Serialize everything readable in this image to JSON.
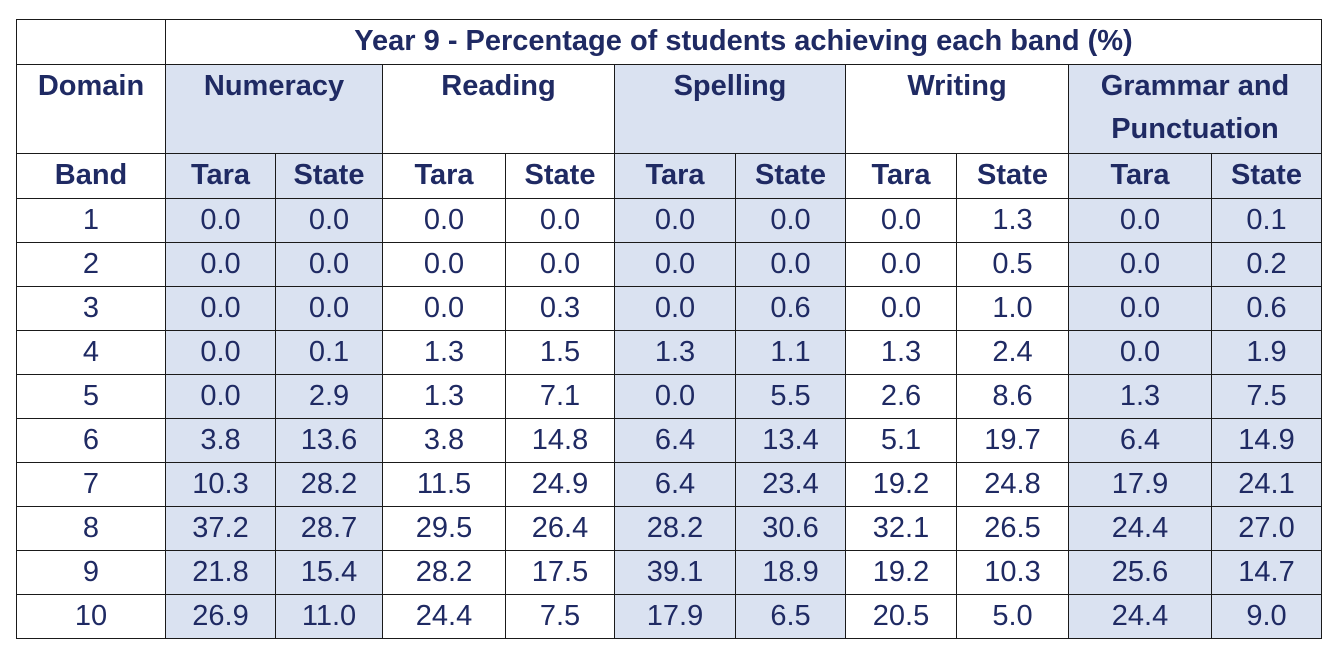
{
  "title": "Year 9 - Percentage of students achieving each band (%)",
  "domain_label": "Domain",
  "band_label": "Band",
  "domains": [
    "Numeracy",
    "Reading",
    "Spelling",
    "Writing",
    "Grammar and Punctuation"
  ],
  "subheaders": [
    "Tara",
    "State"
  ],
  "rows": [
    {
      "band": "1",
      "values": [
        "0.0",
        "0.0",
        "0.0",
        "0.0",
        "0.0",
        "0.0",
        "0.0",
        "1.3",
        "0.0",
        "0.1"
      ]
    },
    {
      "band": "2",
      "values": [
        "0.0",
        "0.0",
        "0.0",
        "0.0",
        "0.0",
        "0.0",
        "0.0",
        "0.5",
        "0.0",
        "0.2"
      ]
    },
    {
      "band": "3",
      "values": [
        "0.0",
        "0.0",
        "0.0",
        "0.3",
        "0.0",
        "0.6",
        "0.0",
        "1.0",
        "0.0",
        "0.6"
      ]
    },
    {
      "band": "4",
      "values": [
        "0.0",
        "0.1",
        "1.3",
        "1.5",
        "1.3",
        "1.1",
        "1.3",
        "2.4",
        "0.0",
        "1.9"
      ]
    },
    {
      "band": "5",
      "values": [
        "0.0",
        "2.9",
        "1.3",
        "7.1",
        "0.0",
        "5.5",
        "2.6",
        "8.6",
        "1.3",
        "7.5"
      ]
    },
    {
      "band": "6",
      "values": [
        "3.8",
        "13.6",
        "3.8",
        "14.8",
        "6.4",
        "13.4",
        "5.1",
        "19.7",
        "6.4",
        "14.9"
      ]
    },
    {
      "band": "7",
      "values": [
        "10.3",
        "28.2",
        "11.5",
        "24.9",
        "6.4",
        "23.4",
        "19.2",
        "24.8",
        "17.9",
        "24.1"
      ]
    },
    {
      "band": "8",
      "values": [
        "37.2",
        "28.7",
        "29.5",
        "26.4",
        "28.2",
        "30.6",
        "32.1",
        "26.5",
        "24.4",
        "27.0"
      ]
    },
    {
      "band": "9",
      "values": [
        "21.8",
        "15.4",
        "28.2",
        "17.5",
        "39.1",
        "18.9",
        "19.2",
        "10.3",
        "25.6",
        "14.7"
      ]
    },
    {
      "band": "10",
      "values": [
        "26.9",
        "11.0",
        "24.4",
        "7.5",
        "17.9",
        "6.5",
        "20.5",
        "5.0",
        "24.4",
        "9.0"
      ]
    }
  ],
  "colors": {
    "text": "#1f2a63",
    "shade": "#dae2f1",
    "border": "#1a1a1a",
    "background": "#ffffff"
  }
}
